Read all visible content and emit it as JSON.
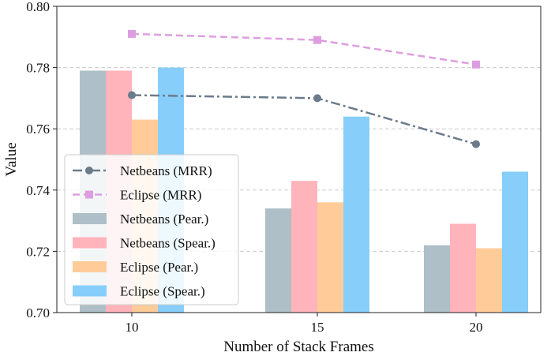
{
  "chart_data": {
    "type": "bar+line",
    "title": "",
    "xlabel": "Number of Stack Frames",
    "ylabel": "Value",
    "categories": [
      "10",
      "15",
      "20"
    ],
    "ylim": [
      0.7,
      0.8
    ],
    "yticks": [
      "0.70",
      "0.72",
      "0.74",
      "0.76",
      "0.78",
      "0.80"
    ],
    "grid": "horizontal dashed",
    "legend_position": "lower-left",
    "series": [
      {
        "name": "Netbeans (MRR)",
        "kind": "line",
        "style": "dash-dot",
        "marker": "circle",
        "color": "#6b7b8c",
        "values": [
          0.771,
          0.77,
          0.755
        ]
      },
      {
        "name": "Eclipse (MRR)",
        "kind": "line",
        "style": "dashed",
        "marker": "square",
        "color": "#dd9ee0",
        "values": [
          0.791,
          0.789,
          0.781
        ]
      },
      {
        "name": "Netbeans (Pear.)",
        "kind": "bar",
        "color": "#aebfc8",
        "values": [
          0.779,
          0.734,
          0.722
        ]
      },
      {
        "name": "Netbeans (Spear.)",
        "kind": "bar",
        "color": "#ffb3bb",
        "values": [
          0.779,
          0.743,
          0.729
        ]
      },
      {
        "name": "Eclipse (Pear.)",
        "kind": "bar",
        "color": "#ffcc99",
        "values": [
          0.763,
          0.736,
          0.721
        ]
      },
      {
        "name": "Eclipse (Spear.)",
        "kind": "bar",
        "color": "#87cefa",
        "values": [
          0.78,
          0.764,
          0.746
        ]
      }
    ]
  }
}
